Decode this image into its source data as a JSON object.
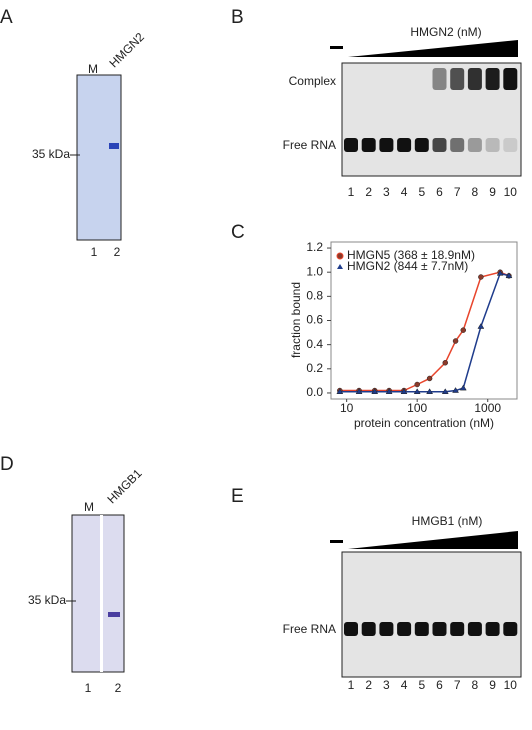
{
  "panels": {
    "A": {
      "letter": "A",
      "marker_label": "M",
      "protein": "HMGN2",
      "size_marker": "35 kDa",
      "lanes": [
        "1",
        "2"
      ]
    },
    "B": {
      "letter": "B",
      "titration": "HMGN2 (nM)",
      "labels": [
        "Complex",
        "Free RNA"
      ],
      "lanes": [
        "1",
        "2",
        "3",
        "4",
        "5",
        "6",
        "7",
        "8",
        "9",
        "10"
      ]
    },
    "C": {
      "letter": "C"
    },
    "D": {
      "letter": "D",
      "marker_label": "M",
      "protein": "HMGB1",
      "size_marker": "35 kDa",
      "lanes": [
        "1",
        "2"
      ]
    },
    "E": {
      "letter": "E",
      "titration": "HMGB1 (nM)",
      "labels": [
        "Free RNA"
      ],
      "lanes": [
        "1",
        "2",
        "3",
        "4",
        "5",
        "6",
        "7",
        "8",
        "9",
        "10"
      ]
    }
  },
  "chart_data": {
    "type": "scatter",
    "x_label": "protein concentration (nM)",
    "y_label": "fraction bound",
    "x": [
      8,
      15,
      25,
      40,
      65,
      100,
      150,
      250,
      350,
      450,
      800,
      1500,
      2000
    ],
    "series": [
      {
        "name": "HMGN5 (368 ± 18.9nM)",
        "color": "#e8452c",
        "values": [
          0.02,
          0.02,
          0.02,
          0.02,
          0.02,
          0.07,
          0.12,
          0.25,
          0.43,
          0.52,
          0.96,
          1.0,
          0.97
        ]
      },
      {
        "name": "HMGN2 (844 ± 7.7nM)",
        "color": "#1f3c8c",
        "values": [
          0.01,
          0.01,
          0.01,
          0.01,
          0.01,
          0.01,
          0.01,
          0.01,
          0.02,
          0.04,
          0.55,
          0.99,
          0.97
        ]
      }
    ],
    "xlim": [
      6,
      2600
    ],
    "xticks": [
      10,
      100,
      1000
    ],
    "x_log": true,
    "ylim": [
      -0.05,
      1.25
    ],
    "yticks": [
      {
        "value": 0,
        "label": "0.0"
      },
      0.2,
      0.4,
      0.6,
      0.8,
      {
        "value": 1,
        "label": "1.0"
      },
      1.2
    ],
    "legend": "upper-left"
  }
}
